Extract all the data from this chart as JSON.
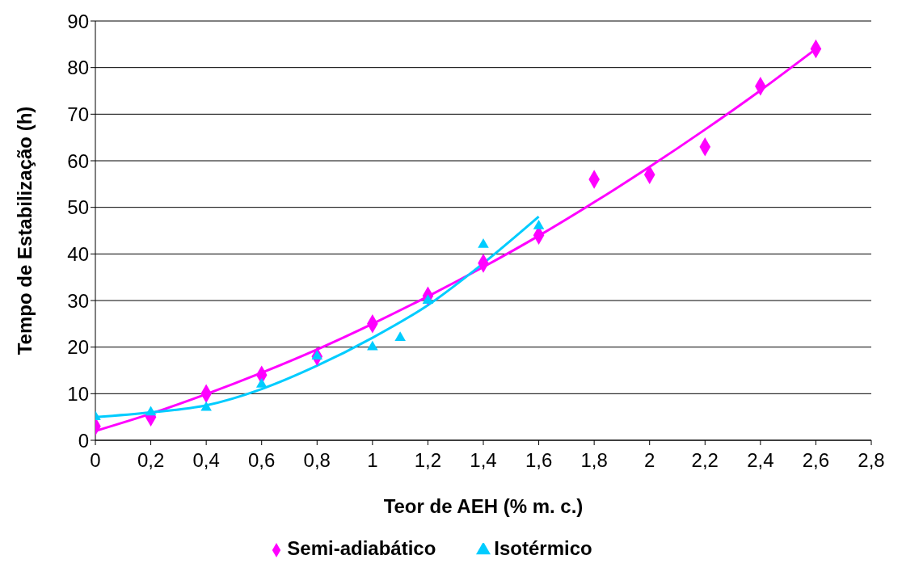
{
  "chart_data": {
    "type": "scatter",
    "xlabel": "Teor de AEH (% m. c.)",
    "ylabel": "Tempo de Estabilização (h)",
    "xlim": [
      0,
      2.8
    ],
    "xticks": [
      0,
      {
        "value": 0.2,
        "label": "0,2"
      },
      {
        "value": 0.4,
        "label": "0,4"
      },
      {
        "value": 0.6,
        "label": "0,6"
      },
      {
        "value": 0.8,
        "label": "0,8"
      },
      1,
      {
        "value": 1.2,
        "label": "1,2"
      },
      {
        "value": 1.4,
        "label": "1,4"
      },
      {
        "value": 1.6,
        "label": "1,6"
      },
      {
        "value": 1.8,
        "label": "1,8"
      },
      2,
      {
        "value": 2.2,
        "label": "2,2"
      },
      {
        "value": 2.4,
        "label": "2,4"
      },
      {
        "value": 2.6,
        "label": "2,6"
      },
      {
        "value": 2.8,
        "label": "2,8"
      }
    ],
    "ylim": [
      0,
      90
    ],
    "yticks": [
      0,
      10,
      20,
      30,
      40,
      50,
      60,
      70,
      80,
      90
    ],
    "grid": "y",
    "legend": "bottom",
    "series": [
      {
        "name": "Semi-adiabático",
        "marker": "diamond",
        "color": "#ff00ff",
        "x": [
          0,
          0.2,
          0.4,
          0.6,
          0.8,
          1,
          1.2,
          1.4,
          1.6,
          1.8,
          2,
          2.2,
          2.4,
          2.6
        ],
        "values": [
          3,
          5,
          10,
          14,
          18,
          25,
          31,
          38,
          44,
          56,
          57,
          63,
          76,
          84
        ]
      },
      {
        "name": "Isotérmico",
        "marker": "triangle",
        "color": "#00ccff",
        "x": [
          0,
          0.2,
          0.4,
          0.6,
          0.8,
          1,
          1.1,
          1.2,
          1.4,
          1.6
        ],
        "values": [
          5,
          6,
          7,
          12,
          18,
          20,
          22,
          30,
          42,
          46
        ]
      },
      {
        "type": "line",
        "marker": "none",
        "color": "#ff00ff",
        "x": [
          0,
          0.2,
          0.4,
          0.6,
          0.8,
          1,
          1.2,
          1.4,
          1.6,
          1.8,
          2,
          2.2,
          2.4,
          2.6
        ],
        "values": [
          2,
          5.7,
          9.9,
          14.5,
          19.5,
          25,
          30.9,
          37.2,
          43.9,
          51.1,
          58.7,
          66.7,
          75.1,
          84
        ]
      },
      {
        "type": "line",
        "marker": "none",
        "color": "#00ccff",
        "x": [
          0,
          0.2,
          0.4,
          0.6,
          0.8,
          1,
          1.2,
          1.4,
          1.6
        ],
        "values": [
          5,
          6,
          7.5,
          11,
          16,
          22,
          29,
          38,
          48
        ]
      }
    ]
  }
}
